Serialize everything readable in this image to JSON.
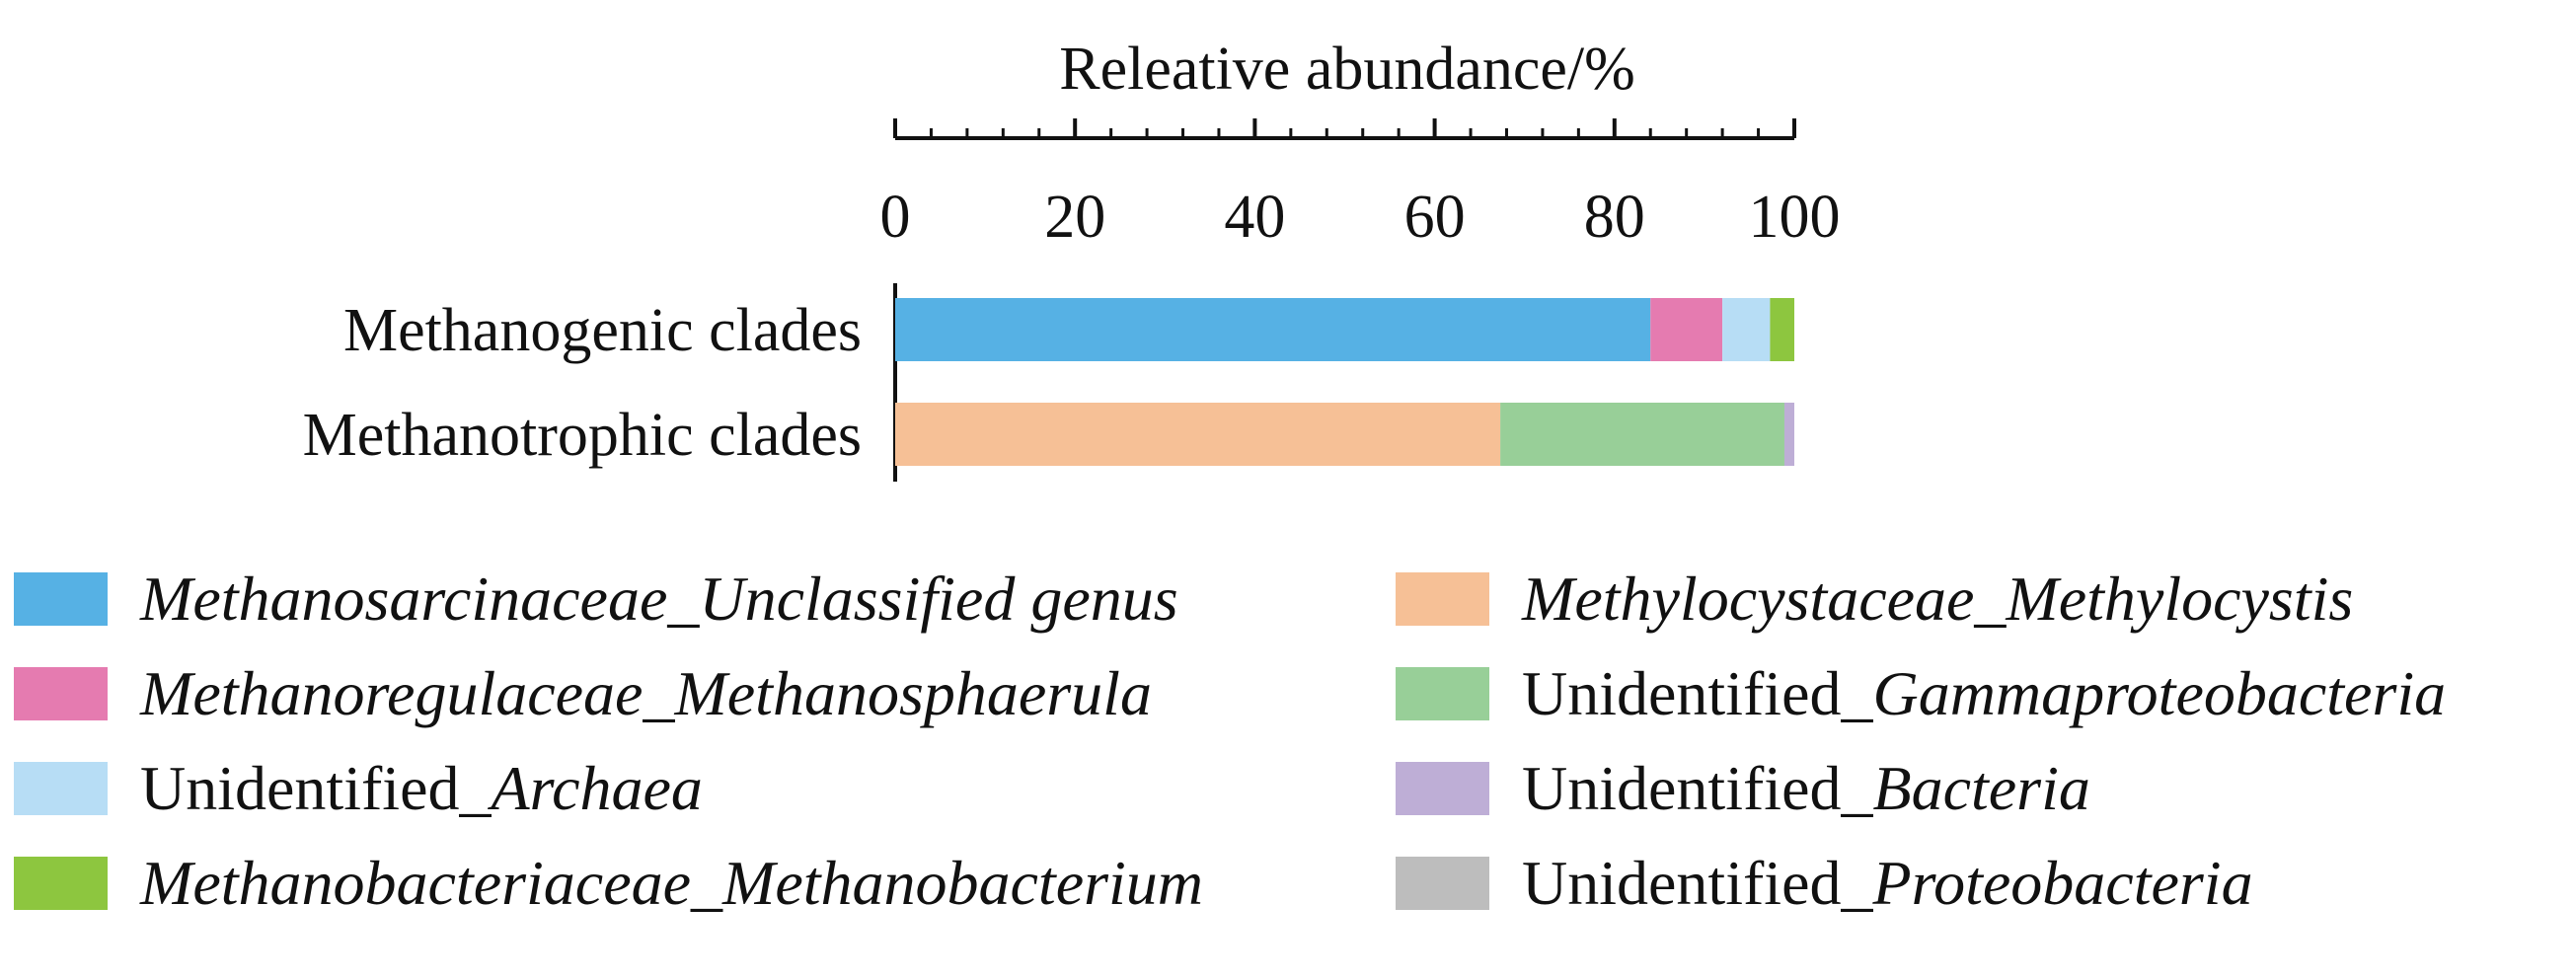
{
  "chart_data": {
    "type": "bar",
    "orientation": "horizontal",
    "stacked": true,
    "xlabel": "Releative abundance/%",
    "xlim": [
      0,
      100
    ],
    "x_ticks": [
      "0",
      "20",
      "40",
      "60",
      "80",
      "100"
    ],
    "categories": [
      "Methanogenic clades",
      "Methanotrophic clades"
    ],
    "series": [
      {
        "name": "Methanosarcinaceae_Unclassified genus",
        "color": "#56B1E4",
        "values": [
          84.0,
          0
        ]
      },
      {
        "name": "Methanoregulaceae_Methanosphaerula",
        "color": "#E57BB0",
        "values": [
          8.0,
          0
        ]
      },
      {
        "name": "Unidentified_Archaea",
        "color": "#B7DDF5",
        "values": [
          5.3,
          0
        ]
      },
      {
        "name": "Methanobacteriaceae_Methanobacterium",
        "color": "#8DC63F",
        "values": [
          2.7,
          0
        ]
      },
      {
        "name": "Methylocystaceae_Methylocystis",
        "color": "#F6C096",
        "values": [
          0,
          67.3
        ]
      },
      {
        "name": "Unidentified_Gammaproteobacteria",
        "color": "#98CF98",
        "values": [
          0,
          31.6
        ]
      },
      {
        "name": "Unidentified_Bacteria",
        "color": "#BEAED6",
        "values": [
          0,
          1.1
        ]
      },
      {
        "name": "Unidentified_Proteobacteria",
        "color": "#BDBDBD",
        "values": [
          0,
          0
        ]
      }
    ],
    "legend": [
      {
        "parts": [
          [
            "Methanosarcinaceae_Unclassified genus",
            true
          ]
        ],
        "color": "#56B1E4"
      },
      {
        "parts": [
          [
            "Methanoregulaceae_Methanosphaerula",
            true
          ]
        ],
        "color": "#E57BB0"
      },
      {
        "parts": [
          [
            "Unidentified_",
            false
          ],
          [
            "Archaea",
            true
          ]
        ],
        "color": "#B7DDF5"
      },
      {
        "parts": [
          [
            "Methanobacteriaceae_Methanobacterium",
            true
          ]
        ],
        "color": "#8DC63F"
      },
      {
        "parts": [
          [
            "Methylocystaceae_Methylocystis",
            true
          ]
        ],
        "color": "#F6C096"
      },
      {
        "parts": [
          [
            "Unidentified_",
            false
          ],
          [
            "Gammaproteobacteria",
            true
          ]
        ],
        "color": "#98CF98"
      },
      {
        "parts": [
          [
            "Unidentified_",
            false
          ],
          [
            "Bacteria",
            true
          ]
        ],
        "color": "#BEAED6"
      },
      {
        "parts": [
          [
            "Unidentified_",
            false
          ],
          [
            "Proteobacteria",
            true
          ]
        ],
        "color": "#BDBDBD"
      }
    ]
  }
}
